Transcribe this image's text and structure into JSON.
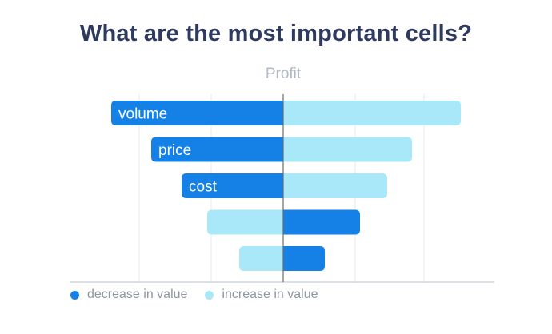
{
  "title": "What are the most important cells?",
  "subtitle": "Profit",
  "legend": {
    "decrease_label": "decrease in value",
    "increase_label": "increase in value"
  },
  "colors": {
    "decrease": "#1580e6",
    "increase": "#a8e8f8",
    "grid": "#e6e8ec",
    "axis": "#c8ccd2",
    "center": "#6b6b6b",
    "title": "#2f3a5f"
  },
  "chart_data": {
    "type": "bar",
    "orientation": "horizontal",
    "title": "What are the most important cells?",
    "subtitle": "Profit",
    "categories": [
      "volume",
      "price",
      "cost",
      "",
      ""
    ],
    "series": [
      {
        "name": "decrease in value",
        "values": [
          -215,
          -165,
          -127,
          -95,
          -55
        ]
      },
      {
        "name": "increase in value",
        "values": [
          222,
          161,
          130,
          96,
          52
        ]
      }
    ],
    "xlim": [
      -265,
      265
    ],
    "grid": true,
    "legend_position": "bottom-left"
  }
}
